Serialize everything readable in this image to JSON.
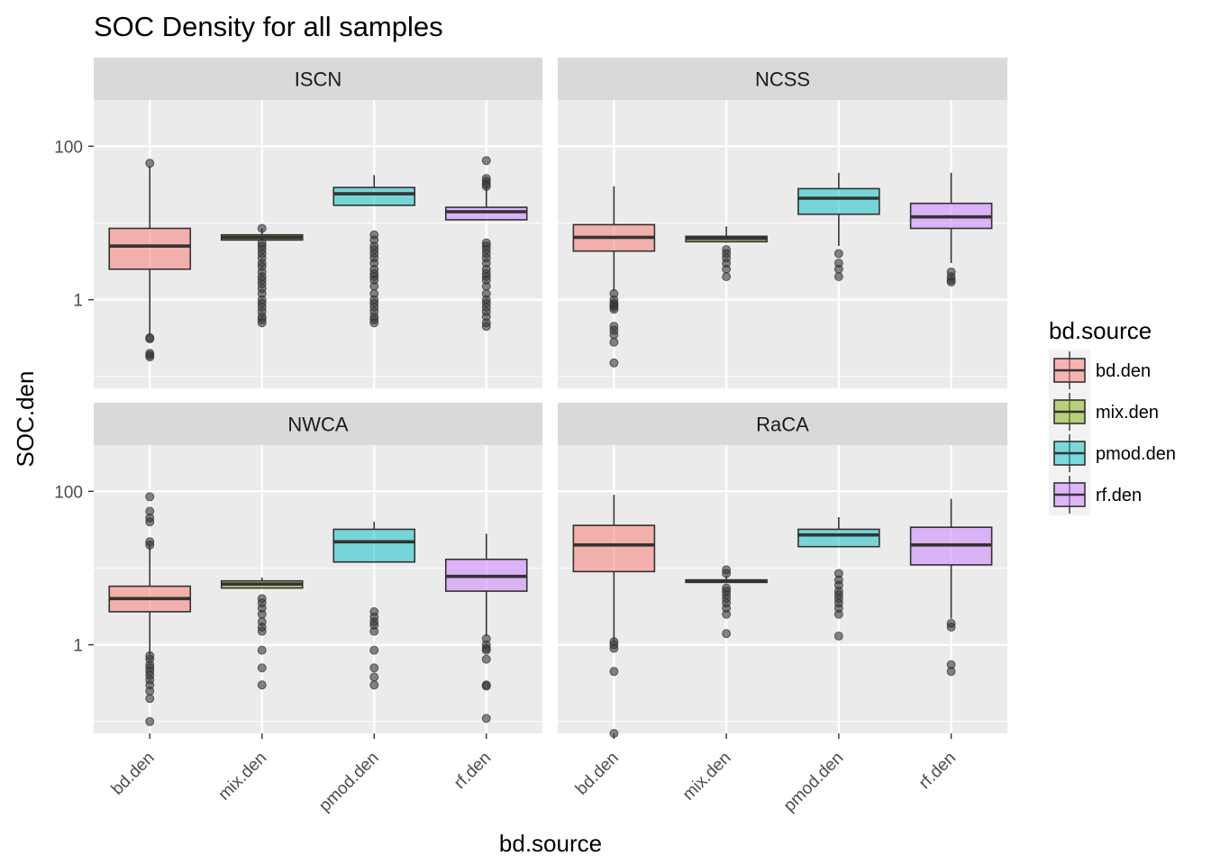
{
  "chart_data": {
    "type": "boxplot",
    "title": "SOC Density for all samples",
    "xlabel": "bd.source",
    "ylabel": "SOC.den",
    "y_scale": "log10",
    "ylim": [
      0.07,
      400
    ],
    "y_ticks": [
      1,
      100
    ],
    "y_tick_labels": [
      "1",
      "100"
    ],
    "grid": true,
    "legend_position": "right",
    "categories": [
      "bd.den",
      "mix.den",
      "pmod.den",
      "rf.den"
    ],
    "legend": {
      "title": "bd.source",
      "entries": [
        {
          "label": "bd.den",
          "color": "#F8766D"
        },
        {
          "label": "mix.den",
          "color": "#7CAE00"
        },
        {
          "label": "pmod.den",
          "color": "#00BFC4"
        },
        {
          "label": "rf.den",
          "color": "#C77CFF"
        }
      ]
    },
    "facets": [
      {
        "name": "ISCN",
        "boxes": [
          {
            "category": "bd.den",
            "whisker_low": 0.35,
            "q1": 2.5,
            "median": 5.0,
            "q3": 8.5,
            "whisker_high": 55,
            "outliers": [
              60,
              0.32,
              0.31,
              0.2,
              0.19,
              0.18
            ]
          },
          {
            "category": "mix.den",
            "whisker_low": 6.0,
            "q1": 6.0,
            "median": 6.5,
            "q3": 7.0,
            "whisker_high": 8.5,
            "outliers": [
              8.5,
              5.5,
              5.0,
              4.5,
              4.0,
              3.5,
              3.0,
              2.7,
              2.3,
              2.0,
              1.8,
              1.6,
              1.4,
              1.2,
              1.0,
              0.9,
              0.8,
              0.7,
              0.6,
              0.55,
              0.5
            ]
          },
          {
            "category": "pmod.den",
            "whisker_low": 17,
            "q1": 17,
            "median": 24,
            "q3": 29,
            "whisker_high": 42,
            "outliers": [
              7.0,
              6.0,
              5.0,
              4.5,
              4.0,
              3.5,
              3.0,
              2.5,
              2.2,
              2.0,
              1.8,
              1.5,
              1.2,
              1.0,
              0.9,
              0.8,
              0.7,
              0.6,
              0.55,
              0.5
            ]
          },
          {
            "category": "rf.den",
            "whisker_low": 11,
            "q1": 11,
            "median": 14,
            "q3": 16,
            "whisker_high": 30,
            "outliers": [
              65,
              38,
              35,
              32,
              30,
              5.5,
              5.0,
              4.5,
              4.0,
              3.5,
              3.0,
              2.5,
              2.2,
              2.0,
              1.8,
              1.5,
              1.2,
              1.0,
              0.9,
              0.8,
              0.7,
              0.6,
              0.5,
              0.45
            ]
          }
        ]
      },
      {
        "name": "NCSS",
        "boxes": [
          {
            "category": "bd.den",
            "whisker_low": 1.3,
            "q1": 4.3,
            "median": 6.5,
            "q3": 9.5,
            "whisker_high": 30,
            "outliers": [
              1.2,
              1.0,
              0.9,
              0.85,
              0.8,
              0.75,
              0.45,
              0.4,
              0.35,
              0.28,
              0.15
            ]
          },
          {
            "category": "mix.den",
            "whisker_low": 5.5,
            "q1": 5.7,
            "median": 6.3,
            "q3": 6.7,
            "whisker_high": 9.0,
            "outliers": [
              4.5,
              4.0,
              3.5,
              3.0,
              2.5,
              2.0
            ]
          },
          {
            "category": "pmod.den",
            "whisker_low": 5.0,
            "q1": 13,
            "median": 21,
            "q3": 28,
            "whisker_high": 45,
            "outliers": [
              4.0,
              3.0,
              2.5,
              2.0
            ]
          },
          {
            "category": "rf.den",
            "whisker_low": 3.0,
            "q1": 8.5,
            "median": 12,
            "q3": 18,
            "whisker_high": 45,
            "outliers": [
              2.3,
              2.0,
              1.8,
              1.7
            ]
          }
        ]
      },
      {
        "name": "NWCA",
        "boxes": [
          {
            "category": "bd.den",
            "whisker_low": 0.75,
            "q1": 2.7,
            "median": 4.0,
            "q3": 5.8,
            "whisker_high": 20,
            "outliers": [
              85,
              55,
              45,
              40,
              22,
              20,
              0.72,
              0.65,
              0.55,
              0.5,
              0.45,
              0.4,
              0.35,
              0.3,
              0.25,
              0.2,
              0.1
            ]
          },
          {
            "category": "mix.den",
            "whisker_low": 5.5,
            "q1": 5.5,
            "median": 6.2,
            "q3": 6.8,
            "whisker_high": 7.5,
            "outliers": [
              4.0,
              3.5,
              3.0,
              2.5,
              2.0,
              1.7,
              1.5,
              0.85,
              0.5,
              0.3
            ]
          },
          {
            "category": "pmod.den",
            "whisker_low": 12,
            "q1": 12,
            "median": 22,
            "q3": 32,
            "whisker_high": 40,
            "outliers": [
              2.7,
              2.3,
              2.0,
              1.8,
              1.5,
              0.85,
              0.5,
              0.38,
              0.3
            ]
          },
          {
            "category": "rf.den",
            "whisker_low": 1.3,
            "q1": 5.0,
            "median": 7.8,
            "q3": 13,
            "whisker_high": 28,
            "outliers": [
              1.2,
              1.0,
              0.9,
              0.85,
              0.65,
              0.3,
              0.29,
              0.11
            ]
          }
        ]
      },
      {
        "name": "RaCA",
        "boxes": [
          {
            "category": "bd.den",
            "whisker_low": 1.1,
            "q1": 9.0,
            "median": 20,
            "q3": 36,
            "whisker_high": 90,
            "outliers": [
              1.1,
              1.0,
              0.9,
              0.45,
              0.07
            ]
          },
          {
            "category": "mix.den",
            "whisker_low": 6.5,
            "q1": 6.5,
            "median": 6.8,
            "q3": 7.0,
            "whisker_high": 8.0,
            "outliers": [
              9.5,
              8.5,
              5.5,
              5.0,
              4.5,
              4.0,
              3.5,
              3.0,
              2.5,
              1.4
            ]
          },
          {
            "category": "pmod.den",
            "whisker_low": 19,
            "q1": 19,
            "median": 27,
            "q3": 32,
            "whisker_high": 46,
            "outliers": [
              8.5,
              7.0,
              6.0,
              5.0,
              4.5,
              4.0,
              3.5,
              3.0,
              2.5,
              1.3
            ]
          },
          {
            "category": "rf.den",
            "whisker_low": 2.2,
            "q1": 11,
            "median": 20,
            "q3": 34,
            "whisker_high": 80,
            "outliers": [
              1.9,
              1.7,
              0.55,
              0.45
            ]
          }
        ]
      }
    ]
  }
}
